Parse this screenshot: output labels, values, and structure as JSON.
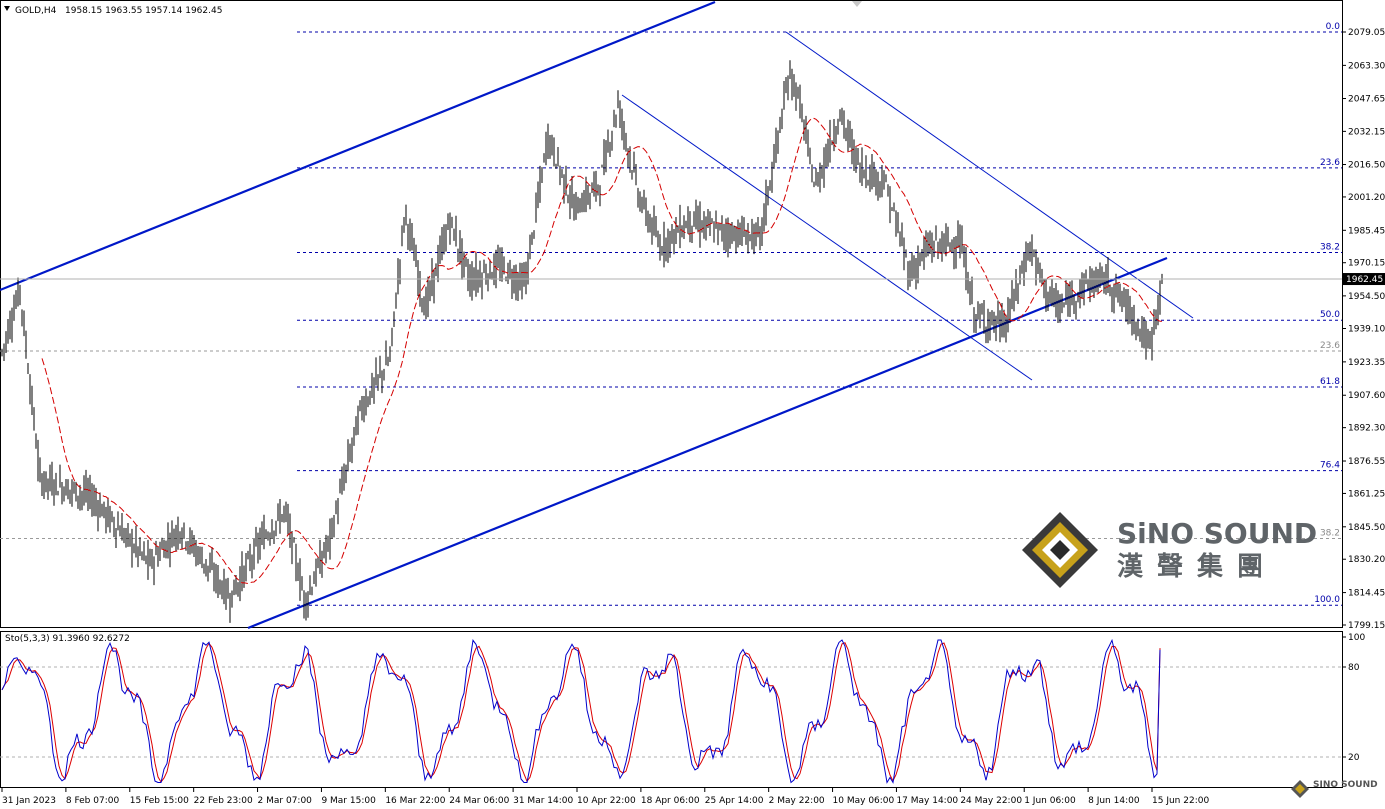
{
  "header": {
    "symbol": "GOLD,H4",
    "ohlc": "1958.15 1963.55 1957.14 1962.45"
  },
  "stoch_header": "Sto(5,3,3) 91.3960 92.6272",
  "price_axis": [
    "2079.05",
    "2063.30",
    "2047.65",
    "2032.15",
    "2016.50",
    "2001.20",
    "1985.45",
    "1970.15",
    "1954.50",
    "1939.10",
    "1923.35",
    "1907.60",
    "1892.30",
    "1876.55",
    "1861.25",
    "1845.50",
    "1830.20",
    "1814.45",
    "1799.15"
  ],
  "current_price": "1962.45",
  "time_axis": [
    "31 Jan 2023",
    "8 Feb 07:00",
    "15 Feb 15:00",
    "22 Feb 23:00",
    "2 Mar 07:00",
    "9 Mar 15:00",
    "16 Mar 22:00",
    "24 Mar 06:00",
    "31 Mar 14:00",
    "10 Apr 22:00",
    "18 Apr 06:00",
    "25 Apr 14:00",
    "2 May 22:00",
    "10 May 06:00",
    "17 May 14:00",
    "24 May 22:00",
    "1 Jun 06:00",
    "8 Jun 14:00",
    "15 Jun 22:00"
  ],
  "stoch_axis": [
    "100",
    "80",
    "20"
  ],
  "fib_labels": {
    "main": [
      {
        "label": "0.0",
        "price": 2079.05
      },
      {
        "label": "23.6",
        "price": 2014.9
      },
      {
        "label": "38.2",
        "price": 1975.0
      },
      {
        "label": "50.0",
        "price": 1943.0
      },
      {
        "label": "61.8",
        "price": 1911.5
      },
      {
        "label": "76.4",
        "price": 1872.0
      },
      {
        "label": "100.0",
        "price": 1808.5
      }
    ],
    "secondary": [
      {
        "label": "23.6",
        "price": 1928.5
      },
      {
        "label": "38.2",
        "price": 1840.0
      }
    ]
  },
  "logo": {
    "en": "SiNO SOUND",
    "zh": "漢聲集團",
    "small": "SINO SOUND"
  },
  "colors": {
    "up_candle": "#000000",
    "ma": "#d40000",
    "trend": "#0018c8",
    "fib": "#0000aa",
    "stoch_main": "#0000cc",
    "stoch_signal": "#dd0000",
    "current_line": "#b0b0b0"
  },
  "chart_data": {
    "type": "line",
    "title": "GOLD,H4",
    "price_ylim": [
      1799.15,
      2079.05
    ],
    "close_series": {
      "name": "GOLD",
      "x": [
        "31 Jan 2023",
        "8 Feb 07:00",
        "15 Feb 15:00",
        "22 Feb 23:00",
        "2 Mar 07:00",
        "9 Mar 15:00",
        "16 Mar 22:00",
        "24 Mar 06:00",
        "31 Mar 14:00",
        "10 Apr 22:00",
        "18 Apr 06:00",
        "25 Apr 14:00",
        "2 May 22:00",
        "10 May 06:00",
        "17 May 14:00",
        "24 May 22:00",
        "1 Jun 06:00",
        "8 Jun 14:00",
        "15 Jun 22:00"
      ],
      "y": [
        1928,
        1868,
        1845,
        1818,
        1858,
        1862,
        1975,
        1958,
        1990,
        2015,
        1985,
        1982,
        2030,
        2020,
        1960,
        1942,
        1968,
        1953,
        1962
      ]
    },
    "stochastic": {
      "name": "Sto(5,3,3)",
      "k": 91.396,
      "d": 92.6272,
      "levels": [
        80,
        20
      ]
    }
  }
}
